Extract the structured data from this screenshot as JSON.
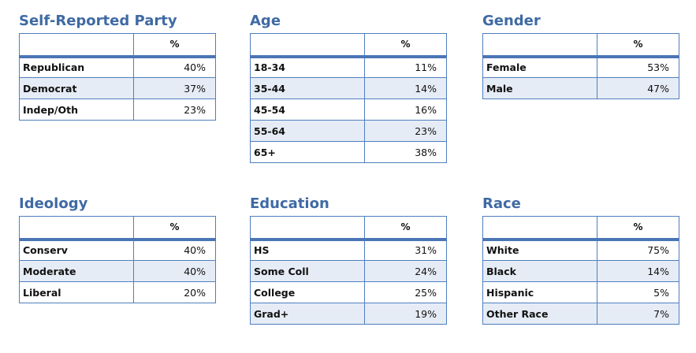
{
  "tables": [
    {
      "title": "Self-Reported Party",
      "header": "%",
      "rows": [
        {
          "label": "Republican",
          "value": "40%"
        },
        {
          "label": "Democrat",
          "value": "37%"
        },
        {
          "label": "Indep/Oth",
          "value": "23%"
        }
      ]
    },
    {
      "title": "Age",
      "header": "%",
      "rows": [
        {
          "label": "18-34",
          "value": "11%"
        },
        {
          "label": "35-44",
          "value": "14%"
        },
        {
          "label": "45-54",
          "value": "16%"
        },
        {
          "label": "55-64",
          "value": "23%"
        },
        {
          "label": "65+",
          "value": "38%"
        }
      ]
    },
    {
      "title": "Gender",
      "header": "%",
      "rows": [
        {
          "label": "Female",
          "value": "53%"
        },
        {
          "label": "Male",
          "value": "47%"
        }
      ]
    },
    {
      "title": "Ideology",
      "header": "%",
      "rows": [
        {
          "label": "Conserv",
          "value": "40%"
        },
        {
          "label": "Moderate",
          "value": "40%"
        },
        {
          "label": "Liberal",
          "value": "20%"
        }
      ]
    },
    {
      "title": "Education",
      "header": "%",
      "rows": [
        {
          "label": "HS",
          "value": "31%"
        },
        {
          "label": "Some Coll",
          "value": "24%"
        },
        {
          "label": "College",
          "value": "25%"
        },
        {
          "label": "Grad+",
          "value": "19%"
        }
      ]
    },
    {
      "title": "Race",
      "header": "%",
      "rows": [
        {
          "label": "White",
          "value": "75%"
        },
        {
          "label": "Black",
          "value": "14%"
        },
        {
          "label": "Hispanic",
          "value": "5%"
        },
        {
          "label": "Other Race",
          "value": "7%"
        }
      ]
    }
  ]
}
